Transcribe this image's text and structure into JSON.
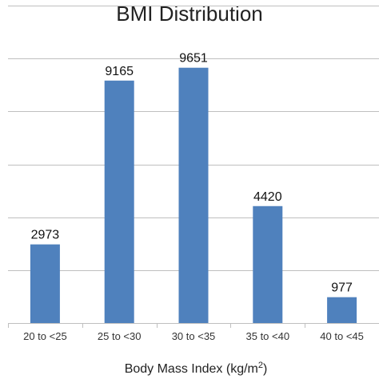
{
  "chart_data": {
    "type": "bar",
    "title": "BMI Distribution",
    "xlabel": "Body Mass Index (kg/m²)",
    "ylabel": "",
    "categories": [
      "20 to <25",
      "25 to <30",
      "30 to <35",
      "35 to <40",
      "40 to <45"
    ],
    "values": [
      2973,
      9165,
      9651,
      4420,
      977
    ],
    "data_labels": [
      "2973",
      "9165",
      "9651",
      "4420",
      "977"
    ],
    "ylim": [
      0,
      12000
    ],
    "y_gridlines": [
      2000,
      4000,
      6000,
      8000,
      10000,
      12000
    ],
    "grid": true,
    "legend": "none",
    "colors": {
      "bar": "#4f81bd",
      "grid": "#bfbfbf",
      "axis": "#bfbfbf"
    }
  }
}
